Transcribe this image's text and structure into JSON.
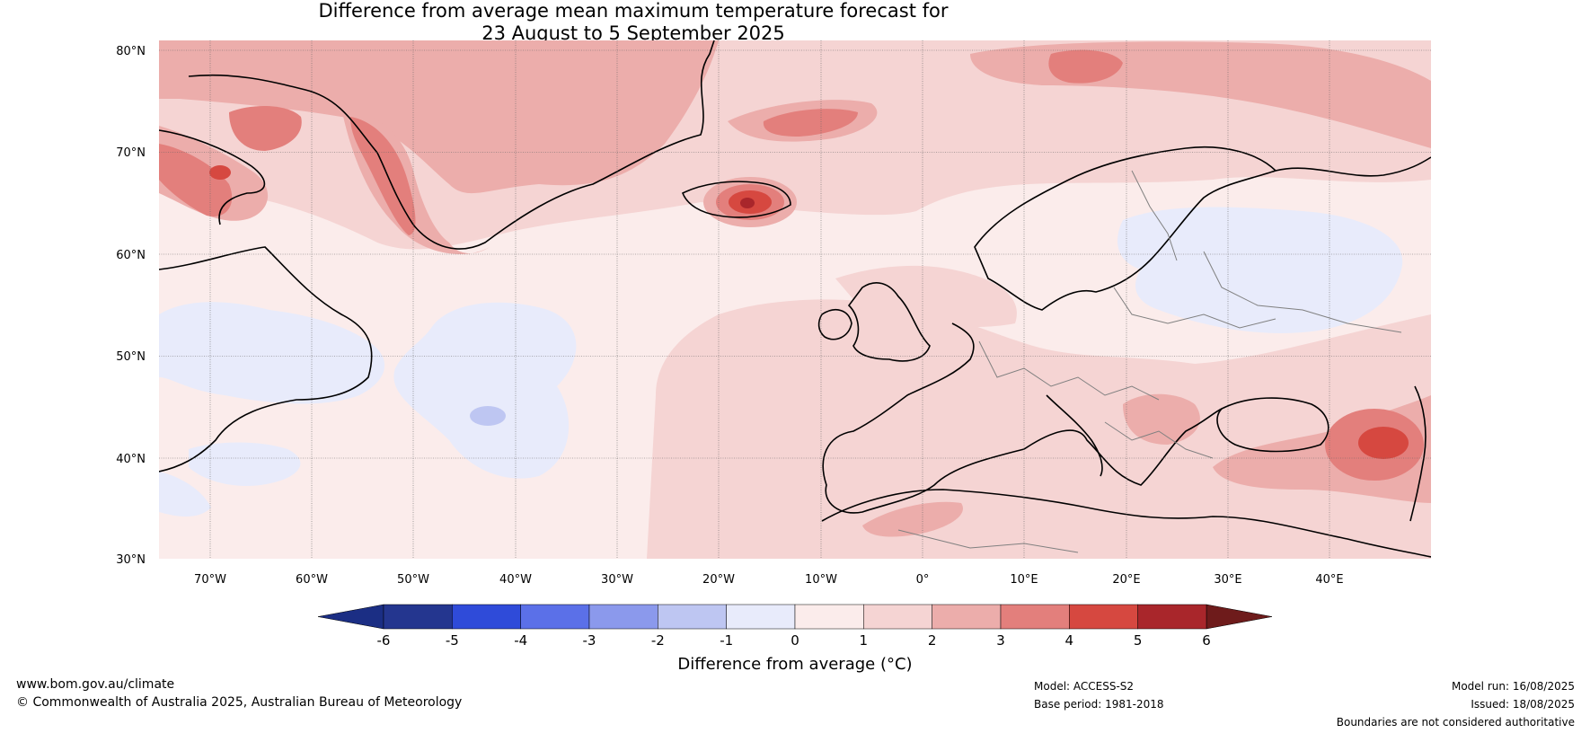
{
  "title": {
    "line1": "Difference from average mean maximum temperature forecast for",
    "line2": "23 August to 5 September 2025"
  },
  "map": {
    "lat_labels": [
      "80°N",
      "70°N",
      "60°N",
      "50°N",
      "40°N",
      "30°N"
    ],
    "lon_labels": [
      "70°W",
      "60°W",
      "50°W",
      "40°W",
      "30°W",
      "20°W",
      "10°W",
      "0°",
      "10°E",
      "20°E",
      "30°E",
      "40°E"
    ],
    "extent": {
      "lon": [
        -75,
        50
      ],
      "lat": [
        30,
        81
      ]
    },
    "anomaly_regions": [
      {
        "name": "Iceland",
        "max": 5
      },
      {
        "name": "Caucasus",
        "max": 5
      },
      {
        "name": "Greenland west coast",
        "max": 4
      },
      {
        "name": "Baffin Island",
        "max": 5
      },
      {
        "name": "Finland and western Russia",
        "min": -1
      },
      {
        "name": "Western North Atlantic",
        "min": -2
      }
    ]
  },
  "colorbar": {
    "ticks": [
      "-6",
      "-5",
      "-4",
      "-3",
      "-2",
      "-1",
      "0",
      "1",
      "2",
      "3",
      "4",
      "5",
      "6"
    ],
    "colors": [
      "#24368f",
      "#2f4bd9",
      "#5b70e8",
      "#8b99ec",
      "#bec6f2",
      "#e8ebfb",
      "#fbeceb",
      "#f5d4d3",
      "#ecadab",
      "#e37f7c",
      "#d64840",
      "#a9262b"
    ],
    "under_color": "#1b2e84",
    "over_color": "#6e1b1b",
    "label": "Difference from average (°C)"
  },
  "footer": {
    "website": "www.bom.gov.au/climate",
    "copyright": "© Commonwealth of Australia 2025, Australian Bureau of Meteorology",
    "model": "Model: ACCESS-S2",
    "base_period": "Base period: 1981-2018",
    "model_run": "Model run: 16/08/2025",
    "issued": "Issued: 18/08/2025",
    "disclaimer": "Boundaries are not considered authoritative"
  }
}
